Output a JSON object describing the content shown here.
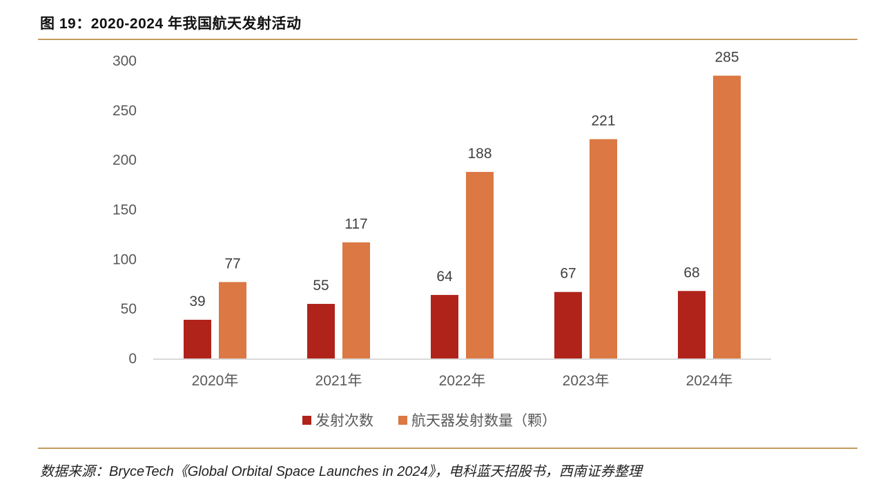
{
  "header": {
    "title": "图 19：2020-2024 年我国航天发射活动"
  },
  "footer": {
    "source": "数据来源：BryceTech《Global Orbital Space Launches in 2024》，电科蓝天招股书，西南证券整理"
  },
  "colors": {
    "series1": "#b0231a",
    "series2": "#db7843",
    "axis": "#d9d9d9",
    "rule": "#c49a5c"
  },
  "chart_data": {
    "type": "bar",
    "title": "2020-2024 年我国航天发射活动",
    "categories": [
      "2020年",
      "2021年",
      "2022年",
      "2023年",
      "2024年"
    ],
    "series": [
      {
        "name": "发射次数",
        "values": [
          39,
          55,
          64,
          67,
          68
        ]
      },
      {
        "name": "航天器发射数量（颗）",
        "values": [
          77,
          117,
          188,
          221,
          285
        ]
      }
    ],
    "xlabel": "",
    "ylabel": "",
    "ylim": [
      0,
      300
    ],
    "yticks": [
      0,
      50,
      100,
      150,
      200,
      250,
      300
    ],
    "grid": false,
    "legend": "bottom-center",
    "data_labels": true
  }
}
